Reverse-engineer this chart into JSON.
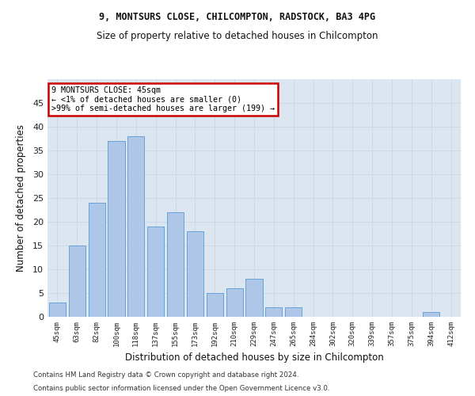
{
  "title_line1": "9, MONTSURS CLOSE, CHILCOMPTON, RADSTOCK, BA3 4PG",
  "title_line2": "Size of property relative to detached houses in Chilcompton",
  "xlabel": "Distribution of detached houses by size in Chilcompton",
  "ylabel": "Number of detached properties",
  "categories": [
    "45sqm",
    "63sqm",
    "82sqm",
    "100sqm",
    "118sqm",
    "137sqm",
    "155sqm",
    "173sqm",
    "192sqm",
    "210sqm",
    "229sqm",
    "247sqm",
    "265sqm",
    "284sqm",
    "302sqm",
    "320sqm",
    "339sqm",
    "357sqm",
    "375sqm",
    "394sqm",
    "412sqm"
  ],
  "values": [
    3,
    15,
    24,
    37,
    38,
    19,
    22,
    18,
    5,
    6,
    8,
    2,
    2,
    0,
    0,
    0,
    0,
    0,
    0,
    1,
    0
  ],
  "bar_color": "#aec6e8",
  "bar_edge_color": "#5b9bd5",
  "annotation_text": "9 MONTSURS CLOSE: 45sqm\n← <1% of detached houses are smaller (0)\n>99% of semi-detached houses are larger (199) →",
  "annotation_box_color": "#ffffff",
  "annotation_box_edge_color": "#cc0000",
  "ylim": [
    0,
    50
  ],
  "yticks": [
    0,
    5,
    10,
    15,
    20,
    25,
    30,
    35,
    40,
    45
  ],
  "grid_color": "#c8d4e0",
  "bg_color": "#dce6f0",
  "footer_line1": "Contains HM Land Registry data © Crown copyright and database right 2024.",
  "footer_line2": "Contains public sector information licensed under the Open Government Licence v3.0."
}
